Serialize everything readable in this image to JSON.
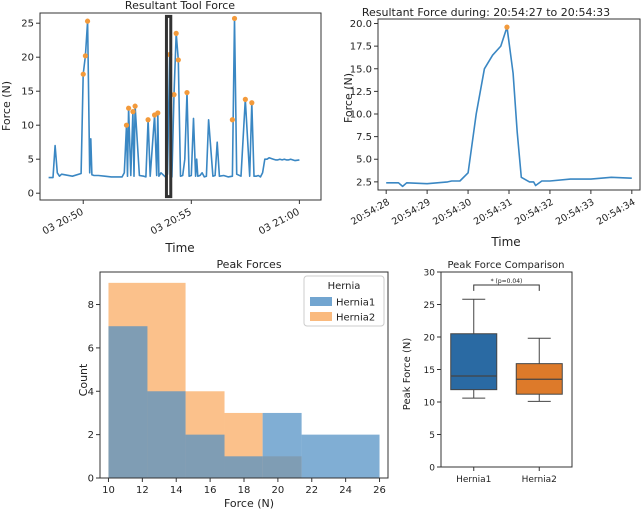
{
  "colors": {
    "blue": "#3a87c3",
    "orange": "#f7a24b",
    "hist_blue": "#4f8fc4",
    "hist_orange": "#f9a95e",
    "box_blue": "#2a6aa3",
    "box_orange": "#dd7a2a",
    "peak": "#f39a3b"
  },
  "chart_data": [
    {
      "type": "line",
      "title": "Resultant Tool Force",
      "xlabel": "Time",
      "ylabel": "Force (N)",
      "xlim": [
        48.0,
        61.0
      ],
      "ylim": [
        -1,
        26.5
      ],
      "yticks": [
        0,
        5,
        10,
        15,
        20,
        25
      ],
      "xticks": [
        {
          "v": 50,
          "label": "03 20:50"
        },
        {
          "v": 55,
          "label": "03 20:55"
        },
        {
          "v": 60,
          "label": "03 21:00"
        }
      ],
      "series": [
        {
          "name": "Resultant force",
          "x_minutes": [
            48.4,
            48.6,
            48.7,
            48.8,
            48.9,
            49.0,
            49.5,
            49.9,
            50.0,
            50.1,
            50.2,
            50.3,
            50.35,
            50.4,
            50.5,
            50.7,
            51.0,
            51.3,
            51.6,
            51.8,
            51.9,
            52.0,
            52.05,
            52.1,
            52.2,
            52.3,
            52.35,
            52.4,
            52.6,
            52.8,
            52.9,
            53.0,
            53.1,
            53.3,
            53.4,
            53.45,
            53.5,
            53.6,
            53.8,
            53.9,
            54.0,
            54.05,
            54.1,
            54.2,
            54.3,
            54.4,
            54.5,
            54.6,
            54.7,
            54.8,
            54.9,
            55.0,
            55.1,
            55.2,
            55.25,
            55.3,
            55.4,
            55.5,
            55.6,
            55.7,
            55.8,
            56.0,
            56.1,
            56.2,
            56.3,
            56.5,
            56.7,
            56.9,
            57.0,
            57.1,
            57.3,
            57.5,
            57.7,
            57.8,
            57.9,
            58.0,
            58.1,
            58.2,
            58.3,
            58.4,
            58.5,
            58.6,
            58.8,
            58.9,
            59.0,
            59.1,
            59.2,
            59.3,
            59.4,
            59.5,
            59.6,
            59.8,
            60.0
          ],
          "values": [
            2.3,
            2.3,
            7.0,
            3.0,
            2.5,
            2.8,
            2.5,
            2.9,
            17.5,
            20.2,
            25.3,
            3.0,
            8.0,
            2.7,
            2.6,
            2.6,
            2.5,
            2.4,
            2.4,
            2.4,
            3.0,
            10.0,
            2.5,
            12.5,
            2.6,
            12.0,
            2.5,
            12.8,
            2.6,
            2.5,
            2.4,
            10.8,
            2.5,
            11.5,
            2.6,
            11.8,
            2.5,
            3.0,
            2.4,
            2.8,
            20.4,
            2.5,
            2.4,
            14.5,
            23.5,
            19.6,
            2.5,
            2.6,
            5.0,
            14.8,
            2.5,
            2.6,
            11.0,
            2.5,
            5.0,
            2.5,
            2.6,
            3.0,
            2.4,
            2.5,
            10.8,
            2.5,
            2.6,
            7.5,
            2.5,
            2.6,
            2.4,
            2.5,
            25.7,
            2.8,
            2.5,
            13.8,
            2.5,
            13.3,
            2.5,
            2.5,
            2.6,
            2.4,
            3.0,
            5.0,
            5.0,
            5.2,
            5.0,
            4.9,
            4.9,
            5.0,
            4.9,
            5.0,
            4.9,
            4.9,
            5.0,
            4.8,
            4.9
          ]
        }
      ],
      "peaks": [
        {
          "x": 50.0,
          "y": 17.5
        },
        {
          "x": 50.1,
          "y": 20.2
        },
        {
          "x": 50.2,
          "y": 25.3
        },
        {
          "x": 52.0,
          "y": 10.0
        },
        {
          "x": 52.1,
          "y": 12.5
        },
        {
          "x": 52.3,
          "y": 12.0
        },
        {
          "x": 52.4,
          "y": 12.8
        },
        {
          "x": 53.0,
          "y": 10.8
        },
        {
          "x": 53.3,
          "y": 11.5
        },
        {
          "x": 53.45,
          "y": 11.8
        },
        {
          "x": 54.0,
          "y": 20.4
        },
        {
          "x": 54.2,
          "y": 14.5
        },
        {
          "x": 54.3,
          "y": 23.5
        },
        {
          "x": 54.4,
          "y": 19.6
        },
        {
          "x": 54.8,
          "y": 14.8
        },
        {
          "x": 56.9,
          "y": 10.8
        },
        {
          "x": 57.0,
          "y": 25.7
        },
        {
          "x": 57.5,
          "y": 13.8
        },
        {
          "x": 57.8,
          "y": 13.3
        }
      ],
      "highlight_window": {
        "x_start": 53.85,
        "x_end": 54.05,
        "y_start": -0.5,
        "y_end": 26.0
      }
    },
    {
      "type": "line",
      "title": "Resultant Force during: 20:54:27 to 20:54:33",
      "xlabel": "Time",
      "ylabel": "Force (N)",
      "xlim": [
        27.8,
        34.2
      ],
      "ylim": [
        1.6,
        20.5
      ],
      "yticks": [
        2.5,
        5.0,
        7.5,
        10.0,
        12.5,
        15.0,
        17.5,
        20.0
      ],
      "xticks": [
        {
          "v": 28,
          "label": "20:54:28"
        },
        {
          "v": 29,
          "label": "20:54:29"
        },
        {
          "v": 30,
          "label": "20:54:30"
        },
        {
          "v": 31,
          "label": "20:54:31"
        },
        {
          "v": 32,
          "label": "20:54:32"
        },
        {
          "v": 33,
          "label": "20:54:33"
        },
        {
          "v": 34,
          "label": "20:54:34"
        }
      ],
      "series": [
        {
          "name": "Resultant force",
          "x_seconds": [
            28.0,
            28.3,
            28.4,
            28.5,
            29.0,
            29.5,
            29.6,
            29.8,
            30.0,
            30.2,
            30.4,
            30.6,
            30.8,
            30.95,
            31.1,
            31.2,
            31.3,
            31.5,
            31.6,
            31.65,
            31.8,
            32.0,
            32.5,
            33.0,
            33.5,
            34.0
          ],
          "values": [
            2.4,
            2.4,
            2.0,
            2.4,
            2.3,
            2.5,
            2.6,
            2.6,
            3.5,
            10.0,
            15.0,
            16.5,
            17.5,
            19.6,
            14.5,
            8.0,
            3.0,
            2.5,
            2.5,
            2.1,
            2.6,
            2.6,
            2.8,
            2.8,
            3.0,
            2.9
          ]
        }
      ],
      "peaks": [
        {
          "x": 30.95,
          "y": 19.6
        }
      ]
    },
    {
      "type": "histogram",
      "title": "Peak Forces",
      "xlabel": "Force (N)",
      "ylabel": "Count",
      "xlim": [
        9.5,
        26.5
      ],
      "ylim": [
        0,
        9.5
      ],
      "xticks": [
        10,
        12,
        14,
        16,
        18,
        20,
        22,
        24,
        26
      ],
      "yticks": [
        0,
        2,
        4,
        6,
        8
      ],
      "legend_title": "Hernia",
      "series": [
        {
          "name": "Hernia1",
          "bin_edges": [
            10.0,
            12.3,
            14.55,
            16.85,
            19.1,
            21.4,
            26.0
          ],
          "counts": [
            7,
            4,
            2,
            1,
            3,
            2
          ]
        },
        {
          "name": "Hernia2",
          "bin_edges": [
            10.0,
            14.55,
            16.85,
            19.1,
            21.4
          ],
          "counts": [
            9,
            4,
            3,
            1
          ]
        }
      ]
    },
    {
      "type": "box",
      "title": "Peak Force Comparison",
      "xlabel": "",
      "ylabel": "Peak Force (N)",
      "ylim": [
        0,
        30
      ],
      "yticks": [
        0,
        5,
        10,
        15,
        20,
        25,
        30
      ],
      "categories": [
        "Hernia1",
        "Hernia2"
      ],
      "boxes": [
        {
          "min": 10.6,
          "q1": 11.9,
          "median": 14.0,
          "q3": 20.5,
          "max": 25.8
        },
        {
          "min": 10.1,
          "q1": 11.2,
          "median": 13.5,
          "q3": 15.9,
          "max": 19.8
        }
      ],
      "annotation": "* (p=0.04)"
    }
  ]
}
